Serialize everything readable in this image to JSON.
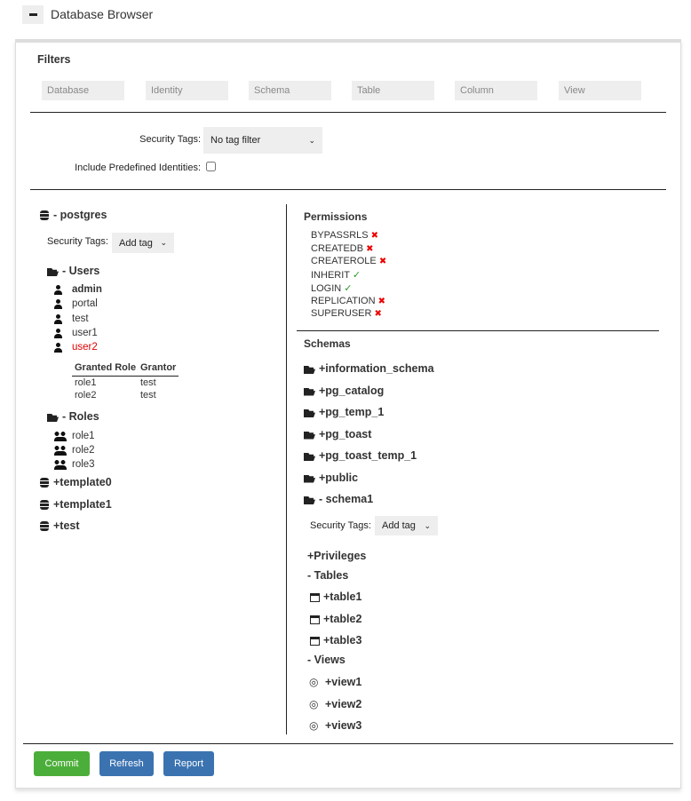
{
  "header": {
    "title": "Database Browser",
    "collapse_icon": "minus-icon"
  },
  "filters": {
    "title": "Filters",
    "fields": [
      "Database",
      "Identity",
      "Schema",
      "Table",
      "Column",
      "View"
    ],
    "security_tags_label": "Security Tags:",
    "security_tags_value": "No tag filter",
    "predefined_label": "Include Predefined Identities:",
    "predefined_checked": false
  },
  "left": {
    "database": "- postgres",
    "security_tags_label": "Security Tags:",
    "security_tags_value": "Add tag",
    "users_label": "- Users",
    "users": [
      {
        "name": "admin",
        "style": "bold"
      },
      {
        "name": "portal"
      },
      {
        "name": "test"
      },
      {
        "name": "user1"
      },
      {
        "name": "user2",
        "color": "#e00000"
      }
    ],
    "granted_table": {
      "headers": [
        "Granted Role",
        "Grantor"
      ],
      "rows": [
        [
          "role1",
          "test"
        ],
        [
          "role2",
          "test"
        ]
      ]
    },
    "roles_label": "- Roles",
    "roles": [
      "role1",
      "role2",
      "role3"
    ],
    "other_databases": [
      "+template0",
      "+template1",
      "+test"
    ]
  },
  "right": {
    "permissions_title": "Permissions",
    "permissions": [
      {
        "name": "BYPASSRLS",
        "granted": false
      },
      {
        "name": "CREATEDB",
        "granted": false
      },
      {
        "name": "CREATEROLE",
        "granted": false
      },
      {
        "name": "INHERIT",
        "granted": true
      },
      {
        "name": "LOGIN",
        "granted": true
      },
      {
        "name": "REPLICATION",
        "granted": false
      },
      {
        "name": "SUPERUSER",
        "granted": false
      }
    ],
    "schemas_title": "Schemas",
    "schemas": [
      "+information_schema",
      "+pg_catalog",
      "+pg_temp_1",
      "+pg_toast",
      "+pg_toast_temp_1",
      "+public",
      "- schema1"
    ],
    "security_tags_label": "Security Tags:",
    "security_tags_value": "Add tag",
    "privileges": "+Privileges",
    "tables_label": "- Tables",
    "tables": [
      "+table1",
      "+table2",
      "+table3"
    ],
    "views_label": "- Views",
    "views": [
      "+view1",
      "+view2",
      "+view3"
    ]
  },
  "footer": {
    "commit": "Commit",
    "refresh": "Refresh",
    "report": "Report"
  },
  "colors": {
    "commit": "#4cae3a",
    "primary": "#3b73b0",
    "denied": "#e00000",
    "granted": "#2a9a2a"
  }
}
